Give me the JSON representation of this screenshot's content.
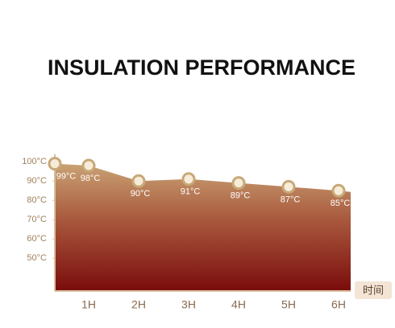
{
  "chart_data": {
    "type": "area",
    "title": "INSULATION PERFORMANCE",
    "categories": [
      null,
      "1H",
      "2H",
      "3H",
      "4H",
      "5H",
      "6H"
    ],
    "values": [
      99,
      98,
      90,
      91,
      89,
      87,
      85
    ],
    "value_labels": [
      "99°C",
      "98°C",
      "90°C",
      "91°C",
      "89°C",
      "87°C",
      "85°C"
    ],
    "x_label": "时间",
    "ylim": [
      33,
      104
    ],
    "yticks": [
      {
        "value": 100,
        "label": "100°C"
      },
      {
        "value": 90,
        "label": "90°C"
      },
      {
        "value": 80,
        "label": "80°C"
      },
      {
        "value": 70,
        "label": "70°C"
      },
      {
        "value": 60,
        "label": "60°C"
      },
      {
        "value": 50,
        "label": "50°C"
      }
    ],
    "color": "#c8a070"
  }
}
